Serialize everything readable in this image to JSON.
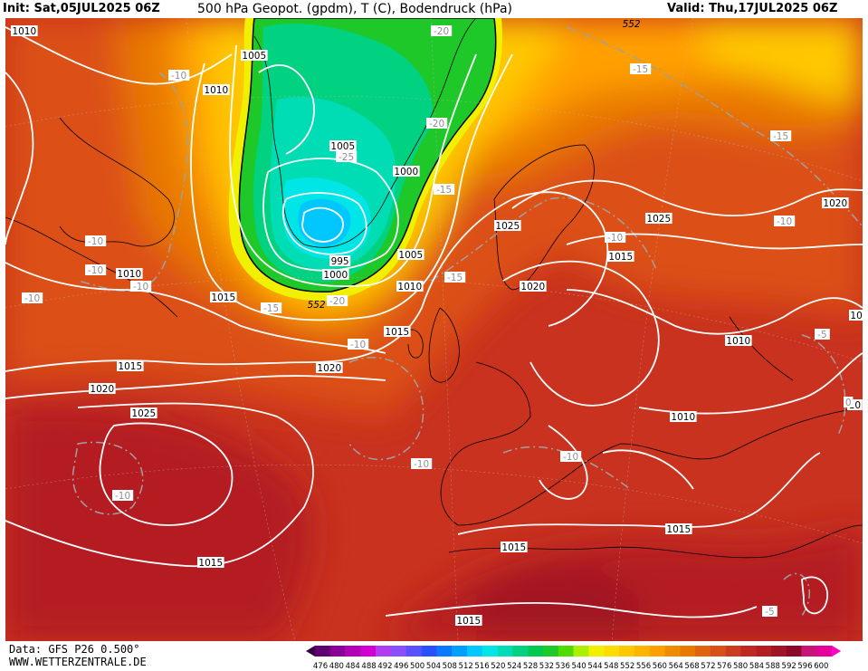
{
  "header": {
    "init": "Init: Sat,05JUL2025 06Z",
    "title": "500 hPa Geopot. (gpdm), T (C), Bodendruck (hPa)",
    "valid": "Valid: Thu,17JUL2025 06Z"
  },
  "footer": {
    "data": "Data: GFS P26 0.500°",
    "site": "WWW.WETTERZENTRALE.DE"
  },
  "colors": {
    "palette": [
      "#3a0046",
      "#5e006e",
      "#8b0096",
      "#b400b4",
      "#d200d2",
      "#b23cf0",
      "#8a50ff",
      "#5a50ff",
      "#2850ff",
      "#0a78ff",
      "#00a0ff",
      "#00c8ff",
      "#00e6e6",
      "#00dcb4",
      "#00d282",
      "#00c850",
      "#1ec828",
      "#50dc00",
      "#aaf000",
      "#f0f000",
      "#ffdc00",
      "#ffc800",
      "#ffb400",
      "#ffa000",
      "#f08c00",
      "#e87800",
      "#e06410",
      "#d85018",
      "#cc3c1e",
      "#c02820",
      "#b41e22",
      "#a01423",
      "#8c0a28",
      "#c81478",
      "#e6009b",
      "#ff00c8"
    ]
  },
  "colorbar": {
    "ticks": [
      "476",
      "480",
      "484",
      "488",
      "492",
      "496",
      "500",
      "504",
      "508",
      "512",
      "516",
      "520",
      "524",
      "528",
      "532",
      "536",
      "540",
      "544",
      "548",
      "552",
      "556",
      "560",
      "564",
      "568",
      "572",
      "576",
      "580",
      "584",
      "588",
      "592",
      "596",
      "600"
    ]
  },
  "pressure_labels": [
    {
      "text": "1005"
    },
    {
      "text": "1010"
    },
    {
      "text": "1005"
    },
    {
      "text": "1000"
    },
    {
      "text": "995"
    },
    {
      "text": "1000"
    },
    {
      "text": "1005"
    },
    {
      "text": "1010"
    },
    {
      "text": "1015"
    },
    {
      "text": "1015"
    },
    {
      "text": "1010"
    },
    {
      "text": "1015"
    },
    {
      "text": "1020"
    },
    {
      "text": "1020"
    },
    {
      "text": "1025"
    },
    {
      "text": "1025"
    },
    {
      "text": "1020"
    },
    {
      "text": "1025"
    },
    {
      "text": "1020"
    },
    {
      "text": "1015"
    },
    {
      "text": "1010"
    },
    {
      "text": "1010"
    },
    {
      "text": "1015"
    },
    {
      "text": "1015"
    },
    {
      "text": "1015"
    },
    {
      "text": "1015"
    },
    {
      "text": "1010"
    },
    {
      "text": "010"
    },
    {
      "text": "1010"
    },
    {
      "text": "10"
    }
  ],
  "temp_labels": [
    {
      "text": "-10"
    },
    {
      "text": "-20"
    },
    {
      "text": "-25"
    },
    {
      "text": "-20"
    },
    {
      "text": "-15"
    },
    {
      "text": "-15"
    },
    {
      "text": "-20"
    },
    {
      "text": "-15"
    },
    {
      "text": "-10"
    },
    {
      "text": "-10"
    },
    {
      "text": "-10"
    },
    {
      "text": "-10"
    },
    {
      "text": "-10"
    },
    {
      "text": "-10"
    },
    {
      "text": "-15"
    },
    {
      "text": "-15"
    },
    {
      "text": "-10"
    },
    {
      "text": "-10"
    },
    {
      "text": "-10"
    },
    {
      "text": "-5"
    },
    {
      "text": "0"
    },
    {
      "text": "-5"
    },
    {
      "text": "-10"
    }
  ],
  "geopot_labels": [
    {
      "text": "552"
    },
    {
      "text": "552"
    }
  ]
}
